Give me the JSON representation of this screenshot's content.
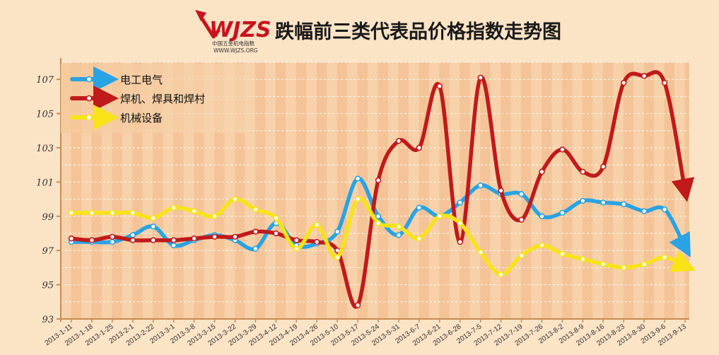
{
  "header": {
    "title": "跌幅前三类代表品价格指数走势图",
    "logo_text": "WJZS",
    "logo_cn": "中国五金机电指数",
    "logo_url": "WWW.WJZS.ORG"
  },
  "colors": {
    "background": "#fbe3c6",
    "bar_light": "#f7d1a9",
    "bar_dark": "#f2b98a",
    "axis": "#c98a50",
    "grid": "#ffffff"
  },
  "chart_data": {
    "type": "line",
    "title": "跌幅前三类代表品价格指数走势图",
    "xlabel": "",
    "ylabel": "",
    "ylim": [
      93,
      108
    ],
    "yticks": [
      93,
      95,
      97,
      99,
      101,
      103,
      105,
      107
    ],
    "grid": true,
    "legend_position": "top-left",
    "x": [
      "2013-1-11",
      "2013-1-18",
      "2013-1-25",
      "2013-2-1",
      "2013-2-22",
      "2013-3-1",
      "2013-3-8",
      "2013-3-15",
      "2013-3-22",
      "2013-3-29",
      "2013-4-12",
      "2013-4-19",
      "2013-4-26",
      "2013-5-10",
      "2013-5-17",
      "2013-5-24",
      "2013-5-31",
      "2013-6-7",
      "2013-6-21",
      "2013-6-28",
      "2013-7-5",
      "2013-7-12",
      "2013-7-19",
      "2013-7-26",
      "2013-8-2",
      "2013-8-9",
      "2013-8-16",
      "2013-8-23",
      "2013-8-30",
      "2013-9-6",
      "2013-9-13"
    ],
    "series": [
      {
        "name": "电工电气",
        "color": "#29a3e4",
        "values": [
          97.5,
          97.5,
          97.5,
          97.9,
          98.4,
          97.3,
          97.6,
          97.9,
          97.6,
          97.1,
          98.6,
          97.3,
          97.4,
          98.1,
          101.2,
          99.0,
          97.9,
          99.5,
          99.0,
          99.8,
          100.8,
          100.3,
          100.3,
          99.0,
          99.2,
          99.9,
          99.8,
          99.7,
          99.3,
          99.4,
          97.2
        ]
      },
      {
        "name": "焊机、焊具和焊村",
        "color": "#c01a1a",
        "values": [
          97.7,
          97.6,
          97.8,
          97.6,
          97.6,
          97.6,
          97.7,
          97.8,
          97.8,
          98.1,
          98.0,
          97.6,
          97.5,
          97.0,
          93.8,
          101.1,
          103.4,
          103.0,
          106.6,
          97.5,
          107.1,
          100.5,
          98.8,
          101.6,
          102.9,
          101.6,
          101.9,
          106.8,
          107.2,
          106.8,
          100.5
        ]
      },
      {
        "name": "机械设备",
        "color": "#f7e318",
        "values": [
          99.2,
          99.2,
          99.2,
          99.2,
          98.9,
          99.5,
          99.3,
          99.0,
          100.0,
          99.4,
          98.9,
          97.1,
          98.5,
          96.6,
          100.0,
          98.6,
          98.4,
          97.7,
          99.0,
          98.6,
          96.9,
          95.6,
          96.7,
          97.3,
          96.8,
          96.5,
          96.2,
          96.0,
          96.2,
          96.6,
          96.1
        ]
      }
    ]
  }
}
